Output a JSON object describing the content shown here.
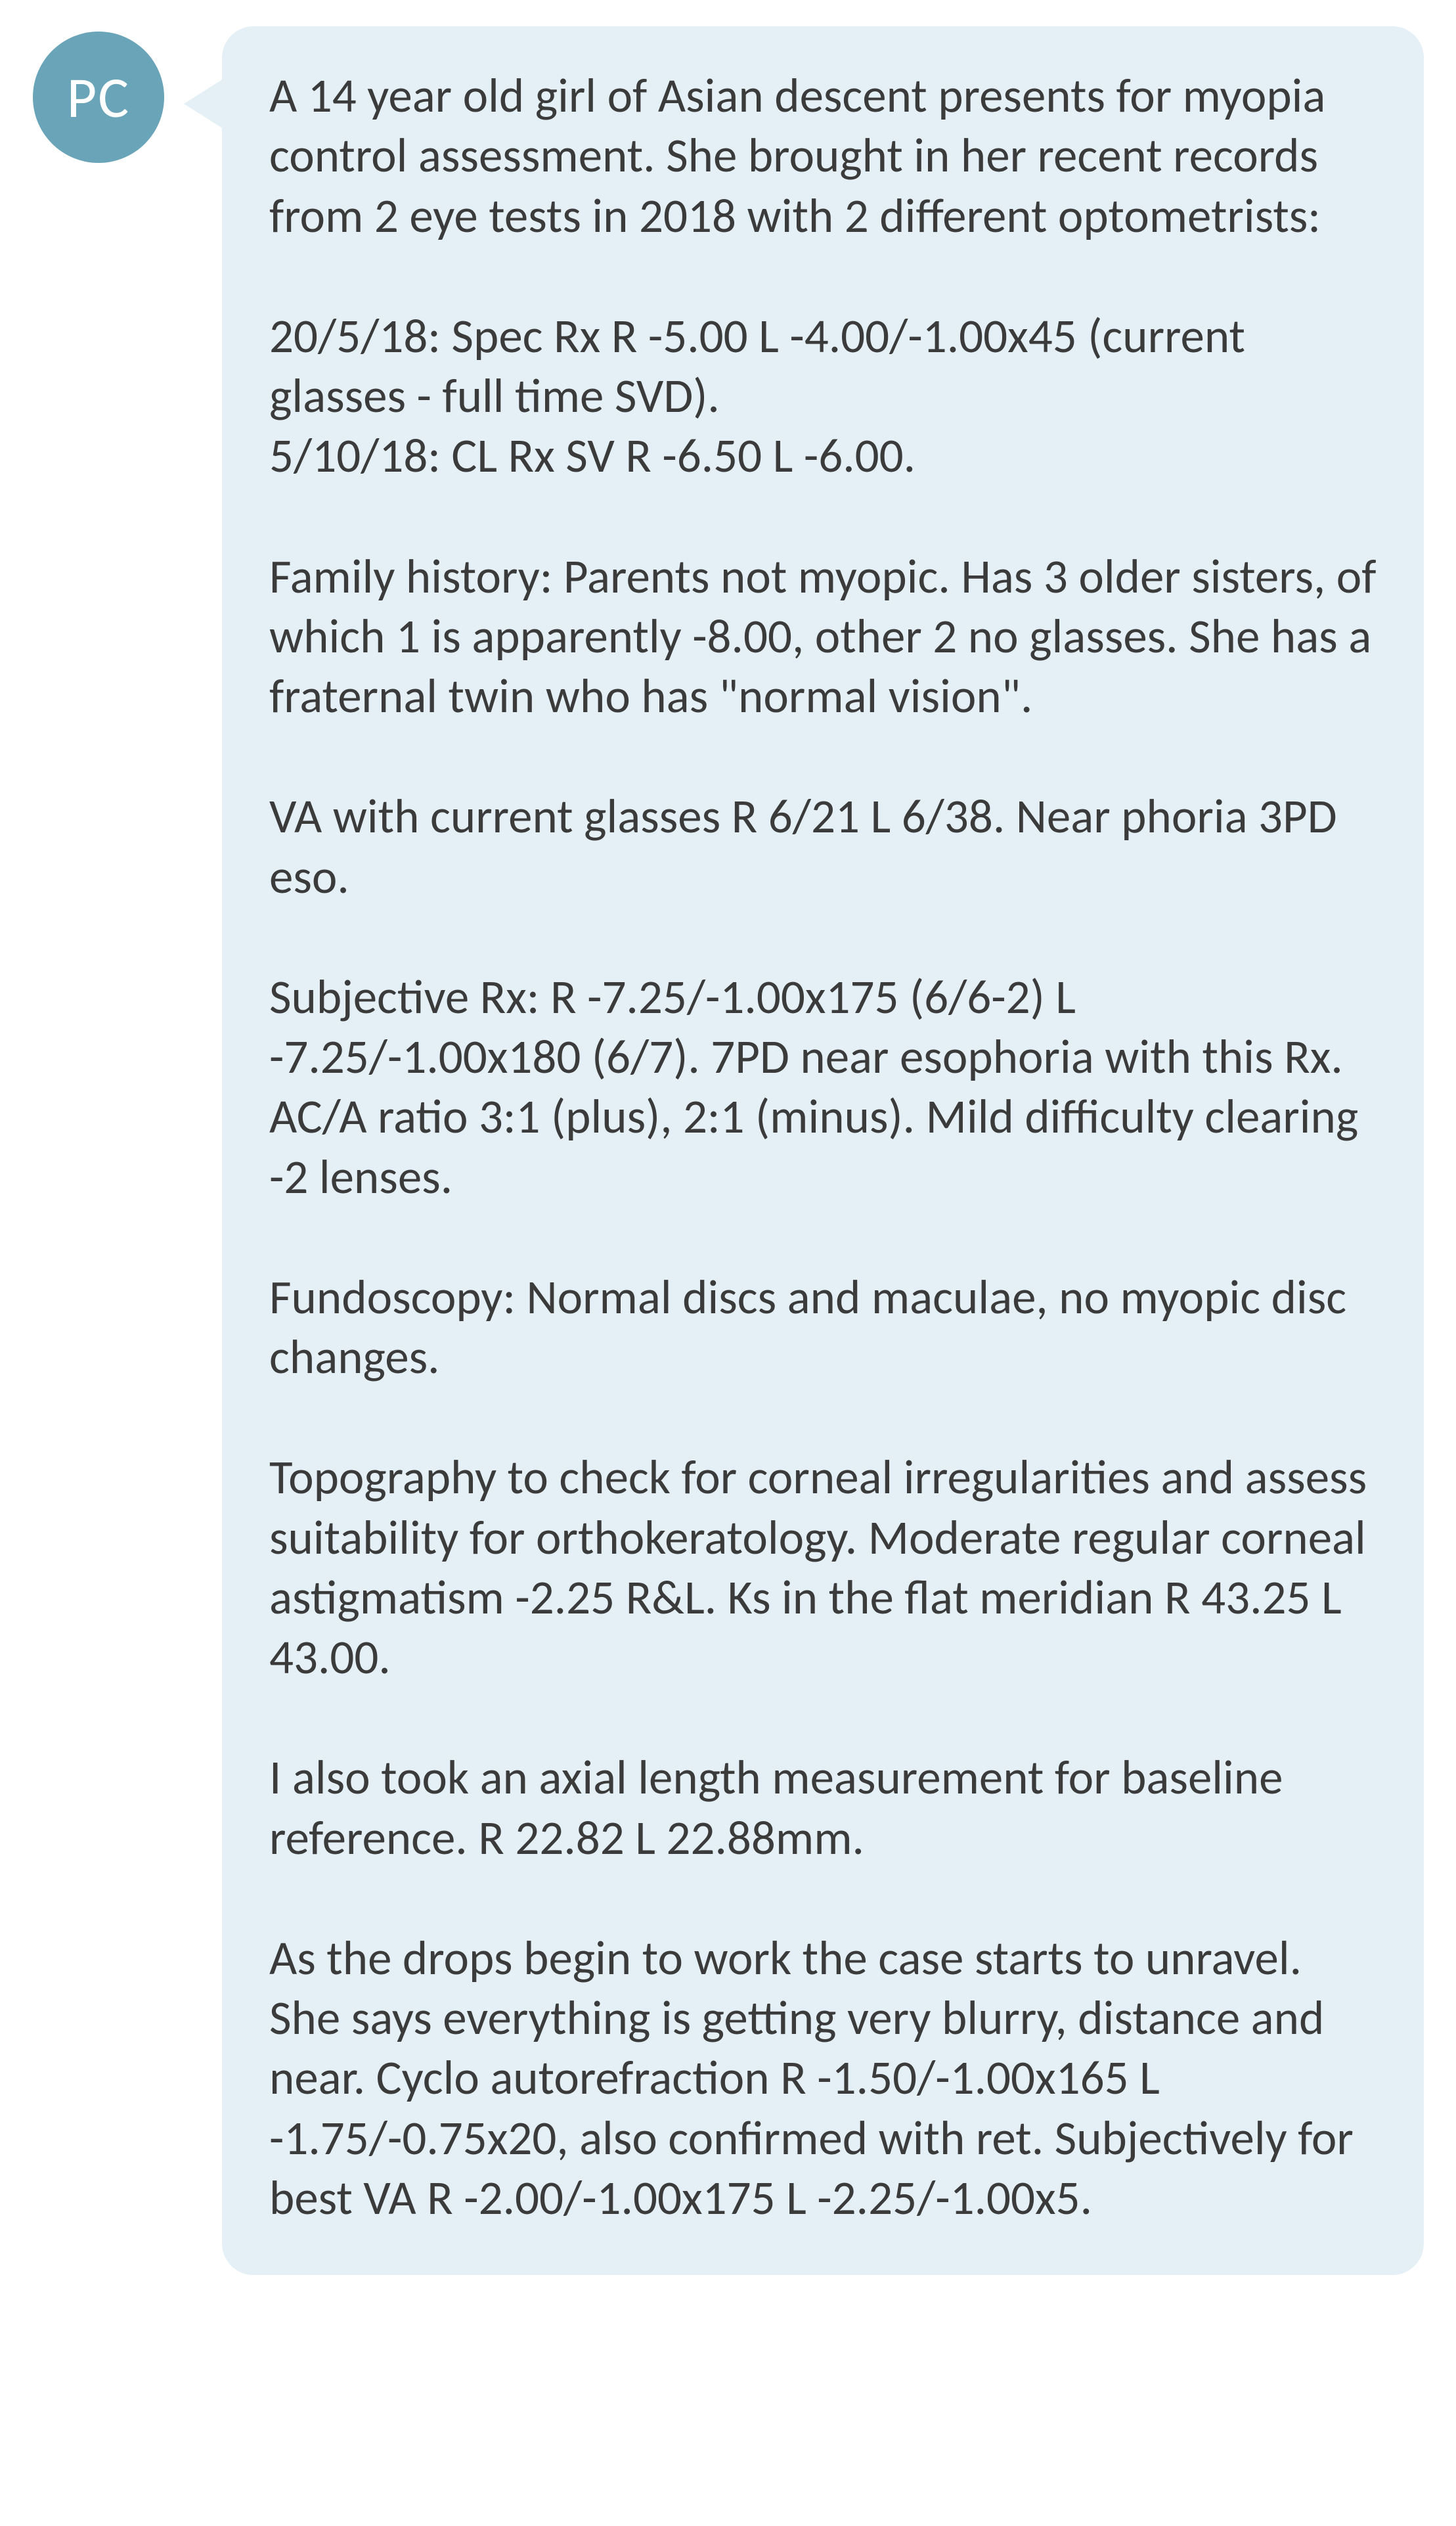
{
  "colors": {
    "avatar_bg": "#6aa4b8",
    "avatar_text": "#ffffff",
    "bubble_bg": "#e4f0f5",
    "bubble_text": "#3b3b3b",
    "page_bg": "#ffffff"
  },
  "avatar": {
    "initials": "PC"
  },
  "message": {
    "paragraphs": [
      "A 14 year old girl of Asian descent presents for myopia control assessment. She brought in her recent records from 2 eye tests in 2018 with 2 different optometrists:",
      "20/5/18: Spec Rx R -5.00 L -4.00/-1.00x45 (current glasses - full time SVD).\n5/10/18: CL Rx SV R -6.50 L -6.00.",
      "Family history: Parents not myopic. Has 3 older sisters, of which 1 is apparently -8.00, other 2 no glasses. She has a fraternal twin who has \"normal vision\".",
      "VA with current glasses R 6/21 L 6/38. Near phoria 3PD eso.",
      "Subjective Rx: R -7.25/-1.00x175 (6/6-2) L -7.25/-1.00x180 (6/7). 7PD near esophoria with this Rx. AC/A ratio 3:1 (plus), 2:1 (minus). Mild difficulty clearing -2 lenses.",
      "Fundoscopy: Normal discs and maculae, no myopic disc changes.",
      "Topography to check for corneal irregularities and assess suitability for orthokeratology. Moderate regular corneal astigmatism -2.25 R&L. Ks in the flat meridian R 43.25 L 43.00.",
      "I also took an axial length measurement for baseline reference. R 22.82 L 22.88mm.",
      "As the drops begin to work the case starts to unravel. She says everything is getting very blurry, distance and near. Cyclo autorefraction R -1.50/-1.00x165 L -1.75/-0.75x20, also confirmed with ret. Subjectively for best VA R -2.00/-1.00x175 L -2.25/-1.00x5."
    ]
  }
}
